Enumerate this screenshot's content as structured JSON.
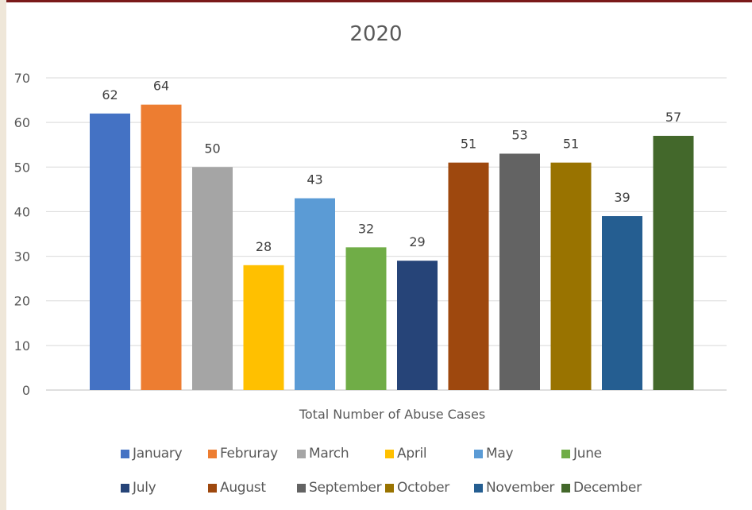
{
  "chart_data": {
    "type": "bar",
    "title": "2020",
    "xlabel": "Total Number of Abuse Cases",
    "ylabel": "",
    "ylim": [
      0,
      70
    ],
    "yticks": [
      0,
      10,
      20,
      30,
      40,
      50,
      60,
      70
    ],
    "grid": true,
    "legend_position": "bottom",
    "categories": [
      "Total Number of Abuse Cases"
    ],
    "series": [
      {
        "name": "January",
        "values": [
          62
        ],
        "color": "#4472c4"
      },
      {
        "name": "Februray",
        "values": [
          64
        ],
        "color": "#ed7d31"
      },
      {
        "name": "March",
        "values": [
          50
        ],
        "color": "#a5a5a5"
      },
      {
        "name": "April",
        "values": [
          28
        ],
        "color": "#ffc000"
      },
      {
        "name": "May",
        "values": [
          43
        ],
        "color": "#5b9bd5"
      },
      {
        "name": "June",
        "values": [
          32
        ],
        "color": "#70ad47"
      },
      {
        "name": "July",
        "values": [
          29
        ],
        "color": "#264478"
      },
      {
        "name": "August",
        "values": [
          51
        ],
        "color": "#9e480e"
      },
      {
        "name": "September",
        "values": [
          53
        ],
        "color": "#636363"
      },
      {
        "name": "October",
        "values": [
          51
        ],
        "color": "#997300"
      },
      {
        "name": "November",
        "values": [
          39
        ],
        "color": "#255e91"
      },
      {
        "name": "December",
        "values": [
          57
        ],
        "color": "#43682b"
      }
    ]
  }
}
